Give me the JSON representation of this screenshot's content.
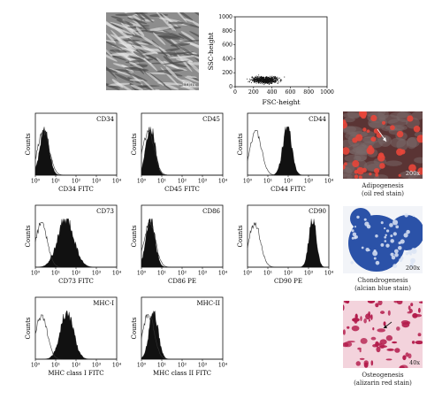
{
  "phase_contrast": {
    "magnification": "100x"
  },
  "scatter": {
    "xlabel": "FSC-height",
    "ylabel": "SSC-height",
    "x_ticks": [
      "0",
      "200",
      "400",
      "600",
      "800",
      "1000"
    ],
    "y_ticks": [
      "0",
      "200",
      "400",
      "600",
      "800",
      "1000"
    ],
    "population": {
      "x_center": 330,
      "y_center": 95,
      "x_spread": 140,
      "y_spread": 45,
      "count": 700
    }
  },
  "histogram_common": {
    "ylabel": "Counts",
    "x_ticks": [
      "10⁰",
      "10¹",
      "10²",
      "10³",
      "10⁴"
    ]
  },
  "histograms": [
    {
      "marker": "CD34",
      "xlabel": "CD34 FITC",
      "iso_peak": 0.4,
      "stain_peak": 0.45,
      "stain_width": 0.22
    },
    {
      "marker": "CD45",
      "xlabel": "CD45 FITC",
      "iso_peak": 0.35,
      "stain_peak": 0.45,
      "stain_width": 0.22
    },
    {
      "marker": "CD44",
      "xlabel": "CD44 FITC",
      "iso_peak": 0.4,
      "stain_peak": 1.95,
      "stain_width": 0.22
    },
    {
      "marker": "CD73",
      "xlabel": "CD73 FITC",
      "iso_peak": 0.3,
      "stain_peak": 1.5,
      "stain_width": 0.4
    },
    {
      "marker": "CD86",
      "xlabel": "CD86 PE",
      "iso_peak": 0.4,
      "stain_peak": 0.45,
      "stain_width": 0.22
    },
    {
      "marker": "CD90",
      "xlabel": "CD90 PE",
      "iso_peak": 0.35,
      "stain_peak": 3.2,
      "stain_width": 0.18
    },
    {
      "marker": "MHC-I",
      "xlabel": "MHC class I FITC",
      "iso_peak": 0.3,
      "stain_peak": 1.55,
      "stain_width": 0.32
    },
    {
      "marker": "MHC-II",
      "xlabel": "MHC class II FITC",
      "iso_peak": 0.35,
      "stain_peak": 0.6,
      "stain_width": 0.22
    }
  ],
  "differentiation": [
    {
      "name": "Adipogenesis",
      "stain": "(oil red stain)",
      "magnification": "200x"
    },
    {
      "name": "Chondrogenesis",
      "stain": "(alcian blue stain)",
      "magnification": "200x"
    },
    {
      "name": "Osteogenesis",
      "stain": "(alizarin red stain)",
      "magnification": "40x"
    }
  ],
  "colors": {
    "oil_red_bg": "#5a3434",
    "oil_red_droplet": "#e8463a",
    "alcian_blue": "#2b52a8",
    "alizarin_bg": "#f3d3dc",
    "alizarin_stain": "#b31c4c"
  }
}
